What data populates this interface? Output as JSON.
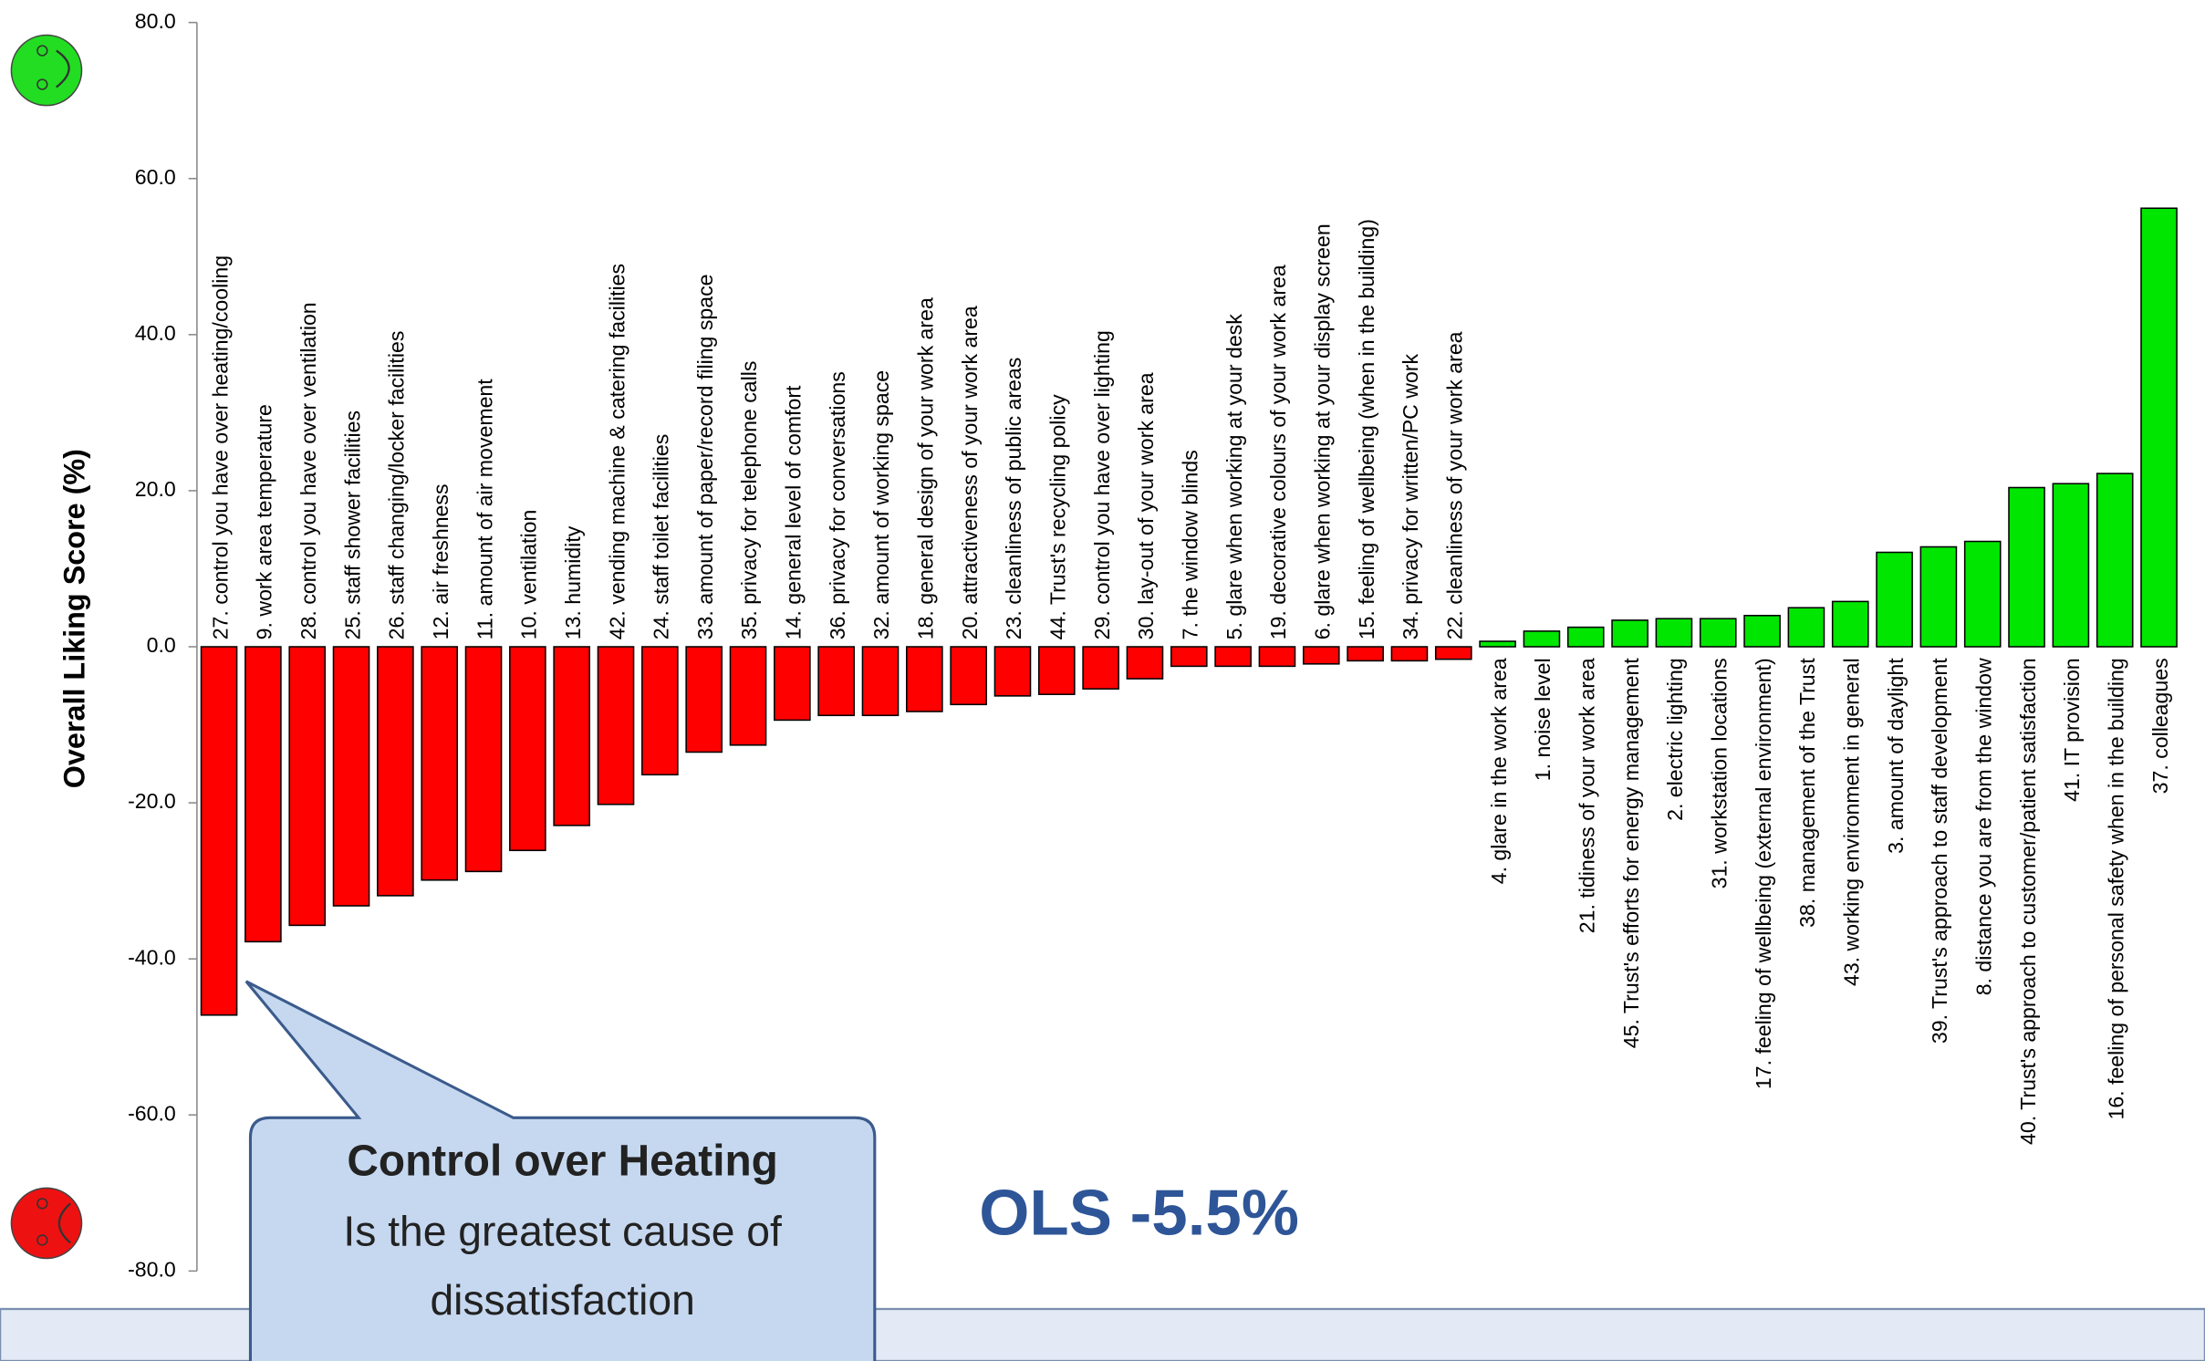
{
  "chart_data": {
    "type": "bar",
    "y_label": "Overall Liking Score (%)",
    "categories": [
      "27. control you have over heating/cooling",
      "9. work area temperature",
      "28. control you have over ventilation",
      "25. staff shower facilities",
      "26. staff changing/locker facilities",
      "12. air freshness",
      "11. amount of air movement",
      "10. ventilation",
      "13. humidity",
      "42. vending machine & catering facilities",
      "24. staff toilet facilities",
      "33. amount of paper/record filing space",
      "35. privacy for telephone calls",
      "14. general level of comfort",
      "36. privacy for conversations",
      "32. amount of working space",
      "18. general design of your work area",
      "20. attractiveness of your work area",
      "23. cleanliness of public areas",
      "44. Trust's recycling policy",
      "29. control you have over lighting",
      "30. lay-out of your work area",
      "7. the window blinds",
      "5. glare when working at your desk",
      "19. decorative colours of your work area",
      "6. glare when working at your display screen",
      "15. feeling of wellbeing (when in the building)",
      "34. privacy for written/PC work",
      "22. cleanliness of your work area",
      "4. glare in the work area",
      "1. noise level",
      "21. tidiness of your work area",
      "45. Trust's efforts for energy management",
      "2. electric lighting",
      "31. workstation locations",
      "17. feeling of wellbeing (external environment)",
      "38. management of the Trust",
      "43. working environment in general",
      "3. amount of daylight",
      "39. Trust's approach to staff development",
      "8. distance you are from the window",
      "40. Trust's approach to customer/patient satisfaction",
      "41. IT provision",
      "16. feeling of personal safety when in the building",
      "37. colleagues"
    ],
    "values": [
      -47.2,
      -37.8,
      -35.7,
      -33.2,
      -31.9,
      -29.9,
      -28.8,
      -26.1,
      -22.9,
      -20.2,
      -16.4,
      -13.5,
      -12.6,
      -9.4,
      -8.8,
      -8.8,
      -8.3,
      -7.4,
      -6.3,
      -6.1,
      -5.4,
      -4.1,
      -2.5,
      -2.5,
      -2.5,
      -2.2,
      -1.8,
      -1.8,
      -1.6,
      0.7,
      2.0,
      2.5,
      3.4,
      3.6,
      3.6,
      4.0,
      5.0,
      5.8,
      12.1,
      12.8,
      13.5,
      20.4,
      20.9,
      22.2,
      56.2
    ],
    "negative_color": "#ff0000",
    "positive_color": "#00e600",
    "ylim": [
      -80,
      80
    ],
    "yticks": [
      {
        "value": -80,
        "label": "-80.0"
      },
      {
        "value": -60,
        "label": "-60.0"
      },
      {
        "value": -40,
        "label": "-40.0"
      },
      {
        "value": -20,
        "label": "-20.0"
      },
      {
        "value": 0,
        "label": "0.0"
      },
      {
        "value": 20,
        "label": "20.0"
      },
      {
        "value": 40,
        "label": "40.0"
      },
      {
        "value": 60,
        "label": "60.0"
      },
      {
        "value": 80,
        "label": "80.0"
      }
    ],
    "callout": {
      "title": "Control over Heating",
      "lines": [
        "Is the greatest cause of",
        "dissatisfaction"
      ]
    },
    "note": "OLS -5.5%"
  }
}
